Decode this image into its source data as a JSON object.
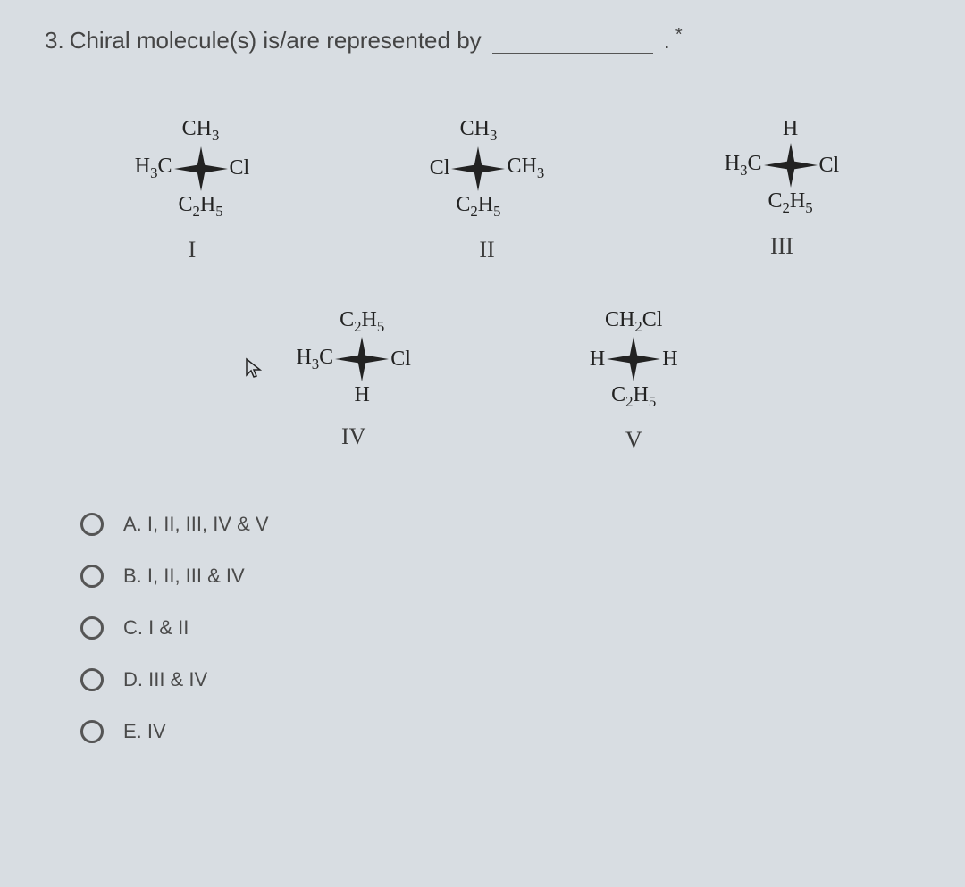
{
  "question": {
    "number": "3.",
    "text": "Chiral molecule(s) is/are represented by",
    "terminator": "."
  },
  "structures": [
    {
      "id": "I",
      "top": "CH3",
      "left": "H3C",
      "right": "Cl",
      "bottom": "C2H5"
    },
    {
      "id": "II",
      "top": "CH3",
      "left": "Cl",
      "right": "CH3",
      "bottom": "C2H5"
    },
    {
      "id": "III",
      "top": "H",
      "left": "H3C",
      "right": "Cl",
      "bottom": "C2H5"
    },
    {
      "id": "IV",
      "top": "C2H5",
      "left": "H3C",
      "right": "Cl",
      "bottom": "H"
    },
    {
      "id": "V",
      "top": "CH2Cl",
      "left": "H",
      "right": "H",
      "bottom": "C2H5"
    }
  ],
  "options": [
    {
      "key": "A",
      "label": "A. I, II, III, IV & V"
    },
    {
      "key": "B",
      "label": "B. I, II, III & IV"
    },
    {
      "key": "C",
      "label": "C. I & II"
    },
    {
      "key": "D",
      "label": "D. III & IV"
    },
    {
      "key": "E",
      "label": "E. IV"
    }
  ],
  "colors": {
    "background": "#d8dde2",
    "text": "#3a3a3a",
    "structure": "#222222",
    "radio_border": "#555555",
    "underline": "#555555"
  },
  "typography": {
    "question_fontsize": 26,
    "structure_fontsize": 24,
    "roman_fontsize": 26,
    "option_fontsize": 22
  }
}
